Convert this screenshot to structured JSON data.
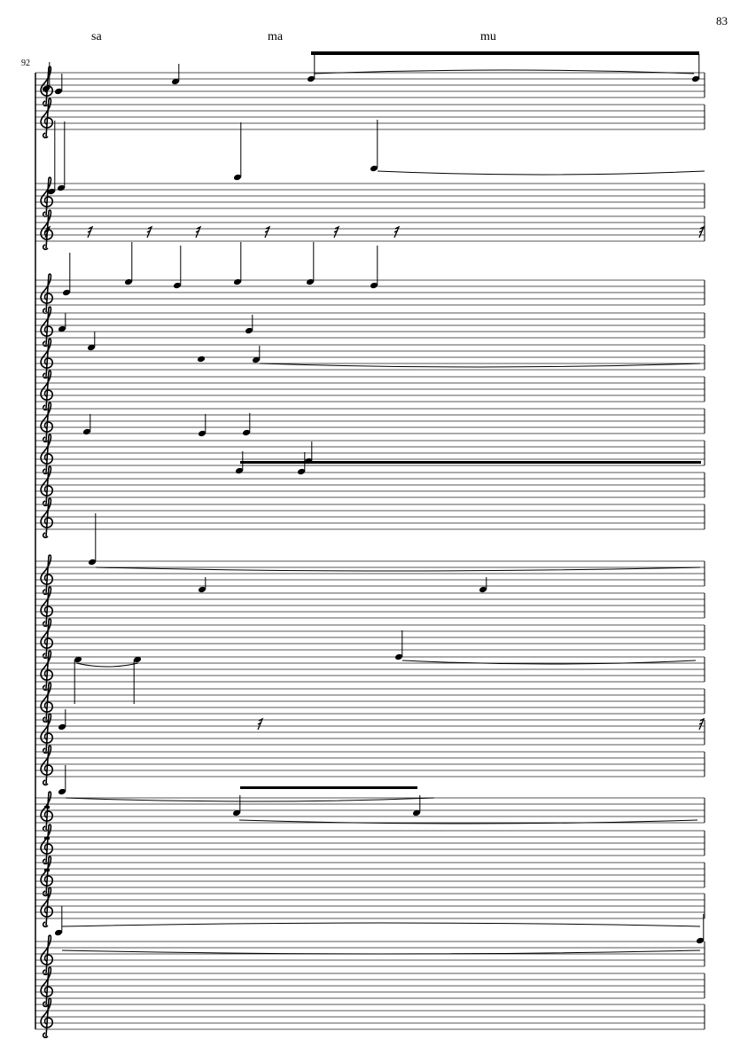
{
  "page_number": "83",
  "measure_number": "92",
  "lyrics": [
    "sa",
    "ma",
    "mu"
  ],
  "clef": "treble-clef-icon",
  "colors": {
    "ink": "#000000",
    "staff_line": "#555555"
  }
}
